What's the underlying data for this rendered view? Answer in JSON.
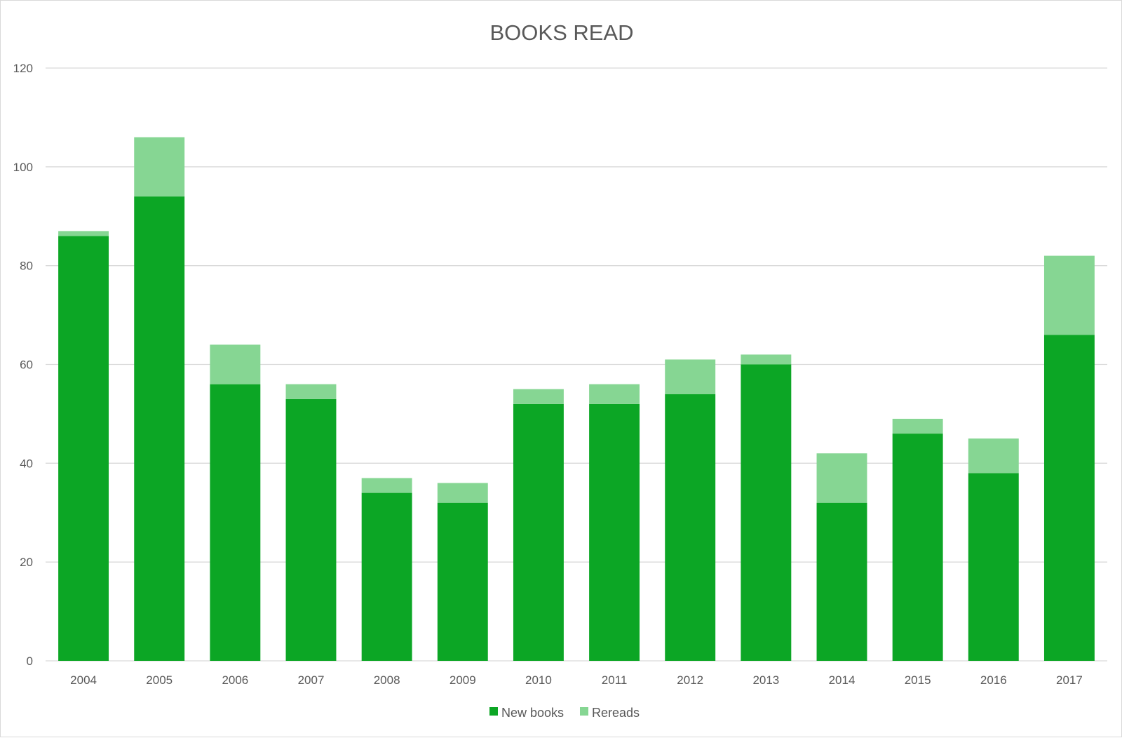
{
  "chart_data": {
    "type": "bar",
    "stacked": true,
    "title": "BOOKS READ",
    "xlabel": "",
    "ylabel": "",
    "ylim": [
      0,
      120
    ],
    "yticks": [
      0,
      20,
      40,
      60,
      80,
      100,
      120
    ],
    "grid": true,
    "legend_position": "bottom",
    "categories": [
      "2004",
      "2005",
      "2006",
      "2007",
      "2008",
      "2009",
      "2010",
      "2011",
      "2012",
      "2013",
      "2014",
      "2015",
      "2016",
      "2017"
    ],
    "series": [
      {
        "name": "New books",
        "color": "#0ca625",
        "values": [
          86,
          94,
          56,
          53,
          34,
          32,
          52,
          52,
          54,
          60,
          32,
          46,
          38,
          66
        ]
      },
      {
        "name": "Rereads",
        "color": "#86d693",
        "values": [
          1,
          12,
          8,
          3,
          3,
          4,
          3,
          4,
          7,
          2,
          10,
          3,
          7,
          16
        ]
      }
    ]
  }
}
